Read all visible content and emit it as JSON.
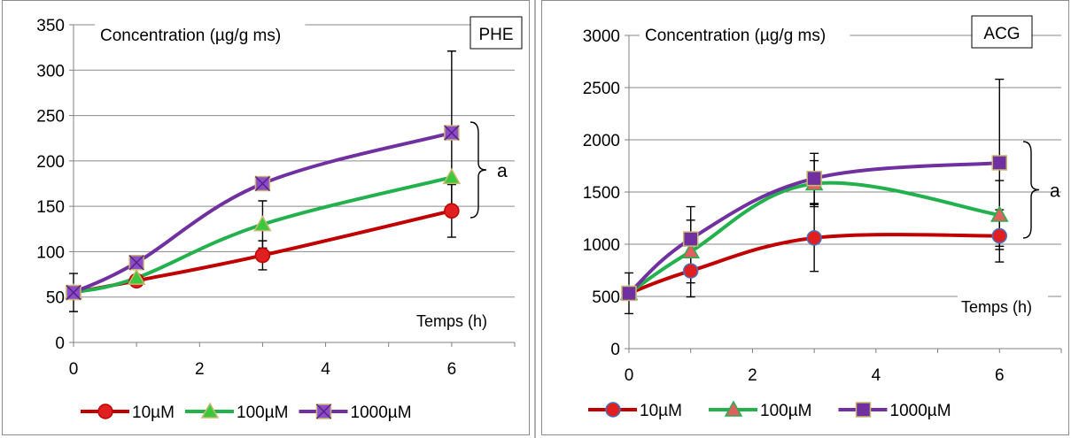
{
  "chart_data": [
    {
      "type": "line",
      "compound": "PHE",
      "ylabel": "Concentration (µg/g ms)",
      "xlabel": "Temps (h)",
      "xlim": [
        0,
        7
      ],
      "ylim": [
        0,
        350
      ],
      "xticks": [
        0,
        2,
        4,
        6
      ],
      "yticks": [
        0,
        50,
        100,
        150,
        200,
        250,
        300,
        350
      ],
      "grid": "horizontal",
      "legend": "bottom",
      "annotation": "a",
      "series": [
        {
          "name": "10µM",
          "color": "#c00000",
          "marker": "circle",
          "fill": "#e02020",
          "x": [
            0,
            1,
            3,
            6
          ],
          "y": [
            55,
            68,
            96,
            145
          ],
          "err": [
            21,
            0,
            16,
            29
          ]
        },
        {
          "name": "100µM",
          "color": "#22b14c",
          "marker": "triangle",
          "fill": "#3cc83c",
          "x": [
            0,
            1,
            3,
            6
          ],
          "y": [
            55,
            71,
            130,
            182
          ],
          "err": [
            0,
            0,
            26,
            0
          ]
        },
        {
          "name": "1000µM",
          "color": "#7030a0",
          "marker": "square-x",
          "fill": "#8b4cc8",
          "x": [
            0,
            1,
            3,
            6
          ],
          "y": [
            55,
            88,
            175,
            231
          ],
          "err": [
            0,
            0,
            0,
            90
          ]
        }
      ]
    },
    {
      "type": "line",
      "compound": "ACG",
      "ylabel": "Concentration (µg/g ms)",
      "xlabel": "Temps (h)",
      "xlim": [
        0,
        7
      ],
      "ylim": [
        0,
        3000
      ],
      "xticks": [
        0,
        2,
        4,
        6
      ],
      "yticks": [
        0,
        500,
        1000,
        1500,
        2000,
        2500,
        3000
      ],
      "grid": "horizontal",
      "legend": "bottom",
      "annotation": "a",
      "series": [
        {
          "name": "10µM",
          "color": "#c00000",
          "marker": "circle",
          "fill": "#e02020",
          "x": [
            0,
            1,
            3,
            6
          ],
          "y": [
            530,
            745,
            1060,
            1080
          ],
          "err": [
            195,
            250,
            320,
            250
          ]
        },
        {
          "name": "100µM",
          "color": "#22b14c",
          "marker": "triangle",
          "fill": "#e06060",
          "x": [
            0,
            1,
            3,
            6
          ],
          "y": [
            530,
            930,
            1580,
            1280
          ],
          "err": [
            0,
            300,
            220,
            330
          ]
        },
        {
          "name": "1000µM",
          "color": "#7030a0",
          "marker": "square",
          "fill": "#7030a0",
          "x": [
            0,
            1,
            3,
            6
          ],
          "y": [
            530,
            1050,
            1630,
            1780
          ],
          "err": [
            0,
            310,
            240,
            800
          ]
        }
      ]
    }
  ]
}
